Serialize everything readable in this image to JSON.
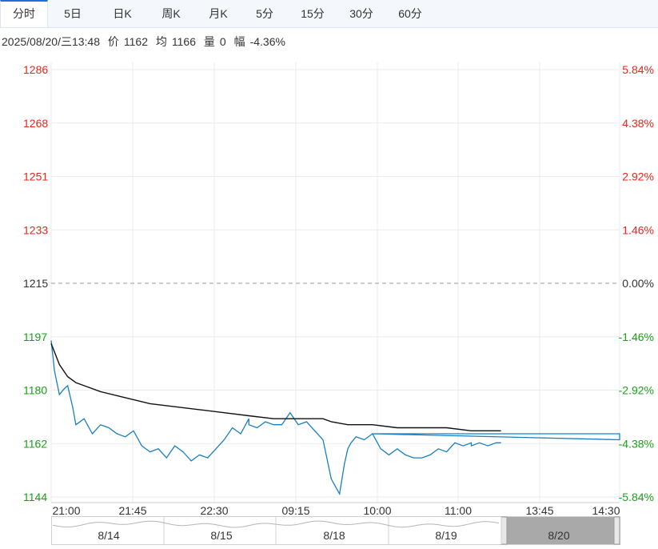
{
  "tabs": [
    {
      "label": "分时",
      "active": true
    },
    {
      "label": "5日",
      "active": false
    },
    {
      "label": "日K",
      "active": false
    },
    {
      "label": "周K",
      "active": false
    },
    {
      "label": "月K",
      "active": false
    },
    {
      "label": "5分",
      "active": false
    },
    {
      "label": "15分",
      "active": false
    },
    {
      "label": "30分",
      "active": false
    },
    {
      "label": "60分",
      "active": false
    }
  ],
  "info": {
    "datetime": "2025/08/20/三13:48",
    "price_label": "价",
    "price": "1162",
    "avg_label": "均",
    "avg": "1166",
    "volume_label": "量",
    "volume": "0",
    "change_label": "幅",
    "change": "-4.36%"
  },
  "colors": {
    "up": "#e8251b",
    "down": "#18a118",
    "flat": "#333333",
    "price_line": "#1a7fc1",
    "avg_line": "#111111",
    "grid": "#ebebeb"
  },
  "chart_data": {
    "type": "line",
    "reference_price": 1215,
    "ylim": [
      1144,
      1286
    ],
    "y_ticks_left": [
      "1286",
      "1268",
      "1251",
      "1233",
      "1215",
      "1197",
      "1180",
      "1162",
      "1144"
    ],
    "y_ticks_right": [
      "5.84%",
      "4.38%",
      "2.92%",
      "1.46%",
      "0.00%",
      "-1.46%",
      "-2.92%",
      "-4.38%",
      "-5.84%"
    ],
    "x_ticks": [
      "21:00",
      "21:45",
      "22:30",
      "09:15",
      "10:00",
      "11:00",
      "13:45",
      "14:30"
    ],
    "series": [
      {
        "key": "price",
        "x": [
          "21:00",
          "21:02",
          "21:05",
          "21:08",
          "21:10",
          "21:13",
          "21:15",
          "21:20",
          "21:25",
          "21:30",
          "21:35",
          "21:40",
          "21:45",
          "21:50",
          "21:55",
          "22:00",
          "22:05",
          "22:10",
          "22:15",
          "22:20",
          "22:25",
          "22:30",
          "22:35",
          "22:40",
          "22:45",
          "22:50",
          "22:55",
          "23:00",
          "09:00",
          "09:05",
          "09:10",
          "09:15",
          "09:20",
          "09:25",
          "09:30",
          "09:35",
          "09:40",
          "09:45",
          "09:50",
          "09:55",
          "09:58",
          "10:00",
          "10:02",
          "10:05",
          "10:10",
          "10:15",
          "10:20",
          "10:25",
          "10:30",
          "10:35",
          "10:40",
          "10:45",
          "10:50",
          "10:55",
          "11:00",
          "11:05",
          "11:10",
          "11:15",
          "11:20",
          "11:25",
          "11:30",
          "13:30",
          "13:35",
          "13:40",
          "13:45",
          "13:48"
        ],
        "values": [
          1196,
          1186,
          1178,
          1180,
          1181,
          1174,
          1168,
          1170,
          1165,
          1168,
          1167,
          1165,
          1164,
          1166,
          1161,
          1159,
          1160,
          1157,
          1161,
          1159,
          1156,
          1158,
          1157,
          1160,
          1163,
          1167,
          1165,
          1170,
          1168,
          1167,
          1169,
          1168,
          1168,
          1172,
          1168,
          1169,
          1166,
          1163,
          1150,
          1145,
          1155,
          1160,
          1162,
          1164,
          1163,
          1165,
          1163,
          1165,
          1165,
          1160,
          1158,
          1160,
          1158,
          1157,
          1157,
          1158,
          1160,
          1159,
          1162,
          1161,
          1162,
          1161,
          1162,
          1161,
          1162,
          1162
        ]
      },
      {
        "key": "average",
        "x": [
          "21:00",
          "21:05",
          "21:10",
          "21:15",
          "21:20",
          "21:30",
          "21:45",
          "22:00",
          "22:15",
          "22:30",
          "22:45",
          "23:00",
          "09:15",
          "09:30",
          "09:45",
          "09:50",
          "10:00",
          "10:15",
          "10:30",
          "10:45",
          "11:00",
          "11:15",
          "11:30",
          "13:30",
          "13:45",
          "13:48"
        ],
        "values": [
          1195,
          1188,
          1184,
          1182,
          1181,
          1179,
          1177,
          1175,
          1174,
          1173,
          1172,
          1171,
          1170,
          1170,
          1170,
          1169,
          1168,
          1168,
          1168,
          1167,
          1167,
          1167,
          1166,
          1166,
          1166,
          1166
        ]
      }
    ],
    "navigator": {
      "labels": [
        "8/14",
        "8/15",
        "8/18",
        "8/19",
        "8/20"
      ],
      "selected": "8/20"
    }
  }
}
